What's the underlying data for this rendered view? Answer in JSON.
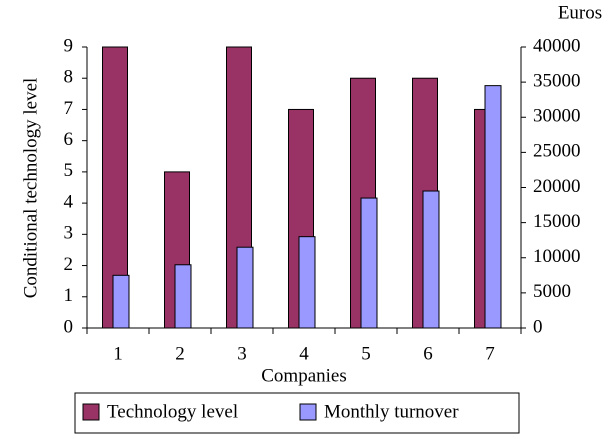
{
  "chart_data": {
    "type": "bar",
    "x_label": "Companies",
    "y_label": "Conditional technology level",
    "y2_label": "Euros",
    "categories": [
      "1",
      "2",
      "3",
      "4",
      "5",
      "6",
      "7"
    ],
    "series": [
      {
        "name": "Technology level",
        "color": "#993366",
        "values": [
          9,
          5,
          9,
          7,
          8,
          8,
          7
        ]
      },
      {
        "name": "Monthly turnover",
        "color": "#9999ff",
        "axis": "y2",
        "values": [
          7500,
          9000,
          11500,
          13000,
          18500,
          19500,
          34500
        ]
      }
    ],
    "ylim": [
      0,
      9
    ],
    "yticks": [
      0,
      1,
      2,
      3,
      4,
      5,
      6,
      7,
      8,
      9
    ],
    "y2lim": [
      0,
      40000
    ],
    "y2ticks": [
      0,
      5000,
      10000,
      15000,
      20000,
      25000,
      30000,
      35000,
      40000
    ],
    "legend": "bottom",
    "grid": false
  }
}
